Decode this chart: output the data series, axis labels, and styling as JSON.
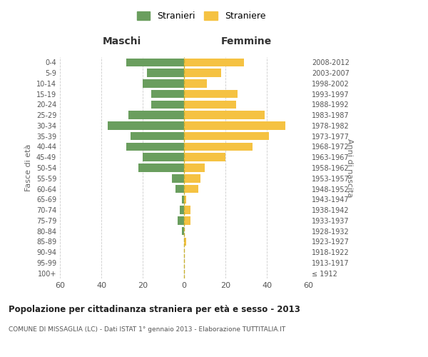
{
  "age_groups": [
    "100+",
    "95-99",
    "90-94",
    "85-89",
    "80-84",
    "75-79",
    "70-74",
    "65-69",
    "60-64",
    "55-59",
    "50-54",
    "45-49",
    "40-44",
    "35-39",
    "30-34",
    "25-29",
    "20-24",
    "15-19",
    "10-14",
    "5-9",
    "0-4"
  ],
  "birth_years": [
    "≤ 1912",
    "1913-1917",
    "1918-1922",
    "1923-1927",
    "1928-1932",
    "1933-1937",
    "1938-1942",
    "1943-1947",
    "1948-1952",
    "1953-1957",
    "1958-1962",
    "1963-1967",
    "1968-1972",
    "1973-1977",
    "1978-1982",
    "1983-1987",
    "1988-1992",
    "1993-1997",
    "1998-2002",
    "2003-2007",
    "2008-2012"
  ],
  "maschi": [
    0,
    0,
    0,
    0,
    1,
    3,
    2,
    1,
    4,
    6,
    22,
    20,
    28,
    26,
    37,
    27,
    16,
    16,
    20,
    18,
    28
  ],
  "femmine": [
    0,
    0,
    0,
    1,
    0,
    3,
    3,
    1,
    7,
    8,
    10,
    20,
    33,
    41,
    49,
    39,
    25,
    26,
    11,
    18,
    29
  ],
  "maschi_color": "#6a9e5e",
  "femmine_color": "#f5c242",
  "dashed_color": "#c8b030",
  "background_color": "#ffffff",
  "grid_color": "#cccccc",
  "title": "Popolazione per cittadinanza straniera per età e sesso - 2013",
  "subtitle": "COMUNE DI MISSAGLIA (LC) - Dati ISTAT 1° gennaio 2013 - Elaborazione TUTTITALIA.IT",
  "xlabel_left": "Maschi",
  "xlabel_right": "Femmine",
  "ylabel_left": "Fasce di età",
  "ylabel_right": "Anni di nascita",
  "legend_maschi": "Stranieri",
  "legend_femmine": "Straniere",
  "xlim": 60
}
